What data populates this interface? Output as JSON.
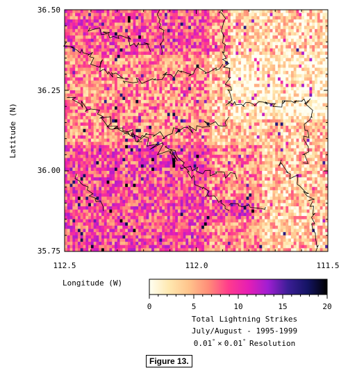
{
  "chart_data": {
    "type": "heatmap",
    "ylabel": "Latitude (N)",
    "xlabel": "Longitude (W)",
    "x_ticks": [
      "112.5",
      "112.0",
      "111.5"
    ],
    "y_ticks": [
      "36.50",
      "36.25",
      "36.00",
      "35.75"
    ],
    "xlim": [
      112.5,
      111.5
    ],
    "ylim": [
      35.75,
      36.5
    ],
    "x_reversed": true,
    "resolution_deg": 0.01,
    "colorbar": {
      "range": [
        0,
        20
      ],
      "ticks": [
        "0",
        "5",
        "10",
        "15",
        "20"
      ],
      "colors": [
        "#fffff2",
        "#ffe8b0",
        "#ffc48c",
        "#ff8c78",
        "#ff3c8c",
        "#e61eb4",
        "#a01ed2",
        "#3c1e96",
        "#141464",
        "#000000"
      ]
    },
    "legend_lines": [
      "Total Lightning Strikes",
      "July/August - 1995-1999"
    ],
    "resolution_label_parts": [
      "0.01",
      "×",
      "0.01",
      "Resolution"
    ],
    "degree_symbol": "°"
  },
  "figure_label": "Figure 13."
}
